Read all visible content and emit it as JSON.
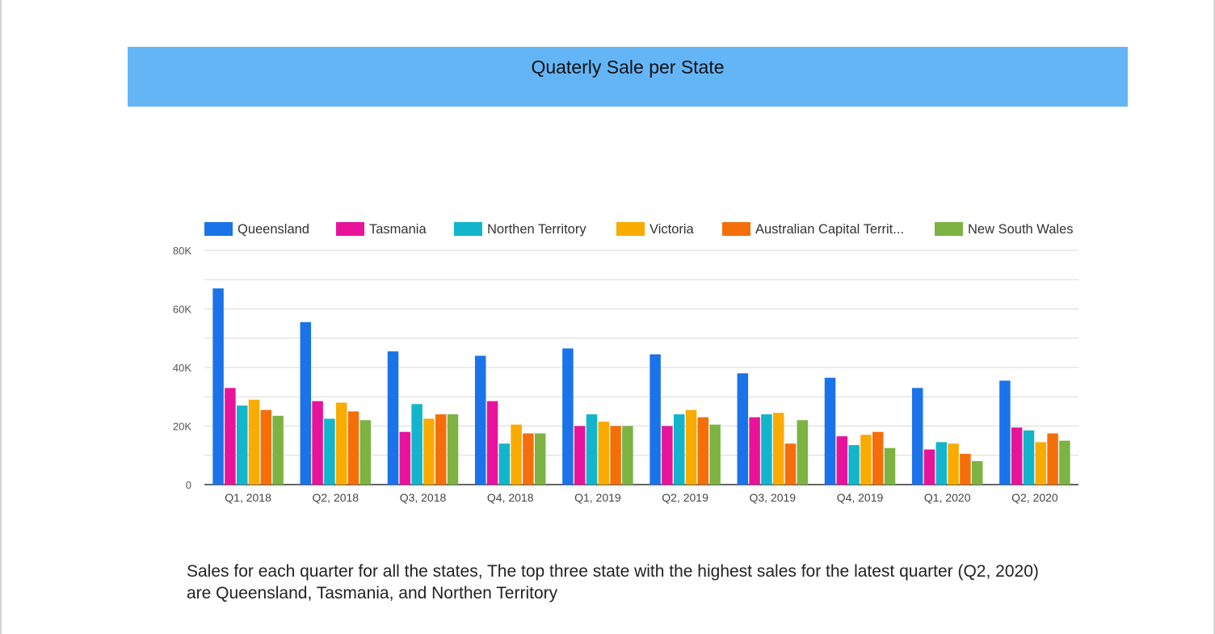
{
  "header": {
    "title": "Quaterly Sale per State",
    "banner_color": "#64b5f6"
  },
  "chart_data": {
    "type": "bar",
    "categories": [
      "Q1, 2018",
      "Q2, 2018",
      "Q3, 2018",
      "Q4, 2018",
      "Q1, 2019",
      "Q2, 2019",
      "Q3, 2019",
      "Q4, 2019",
      "Q1, 2020",
      "Q2, 2020"
    ],
    "series": [
      {
        "name": "Queensland",
        "color": "#1a73e8",
        "values": [
          67000,
          55500,
          45500,
          44000,
          46500,
          44500,
          38000,
          36500,
          33000,
          35500
        ]
      },
      {
        "name": "Tasmania",
        "color": "#e8139b",
        "values": [
          33000,
          28500,
          18000,
          28500,
          20000,
          20000,
          23000,
          16500,
          12000,
          19500
        ]
      },
      {
        "name": "Northen Territory",
        "color": "#12b5cb",
        "values": [
          27000,
          22500,
          27500,
          14000,
          24000,
          24000,
          24000,
          13500,
          14500,
          18500
        ]
      },
      {
        "name": "Victoria",
        "color": "#f9ab00",
        "values": [
          29000,
          28000,
          22500,
          20500,
          21500,
          25500,
          24500,
          17000,
          14000,
          14500
        ]
      },
      {
        "name": "Australian Capital Territ...",
        "color": "#f46f0a",
        "values": [
          25500,
          25000,
          24000,
          17500,
          20000,
          23000,
          14000,
          18000,
          10500,
          17500
        ]
      },
      {
        "name": "New South Wales",
        "color": "#7cb342",
        "values": [
          23500,
          22000,
          24000,
          17500,
          20000,
          20500,
          22000,
          12500,
          8000,
          15000
        ]
      }
    ],
    "yticks": [
      "0",
      "20K",
      "40K",
      "60K",
      "80K"
    ],
    "ylim": [
      0,
      80000
    ],
    "grid": true,
    "legend_position": "top"
  },
  "caption": {
    "text": "Sales for each quarter for all the states, The top three state with the highest sales for the latest quarter (Q2, 2020) are Queensland, Tasmania, and Northen Territory"
  }
}
